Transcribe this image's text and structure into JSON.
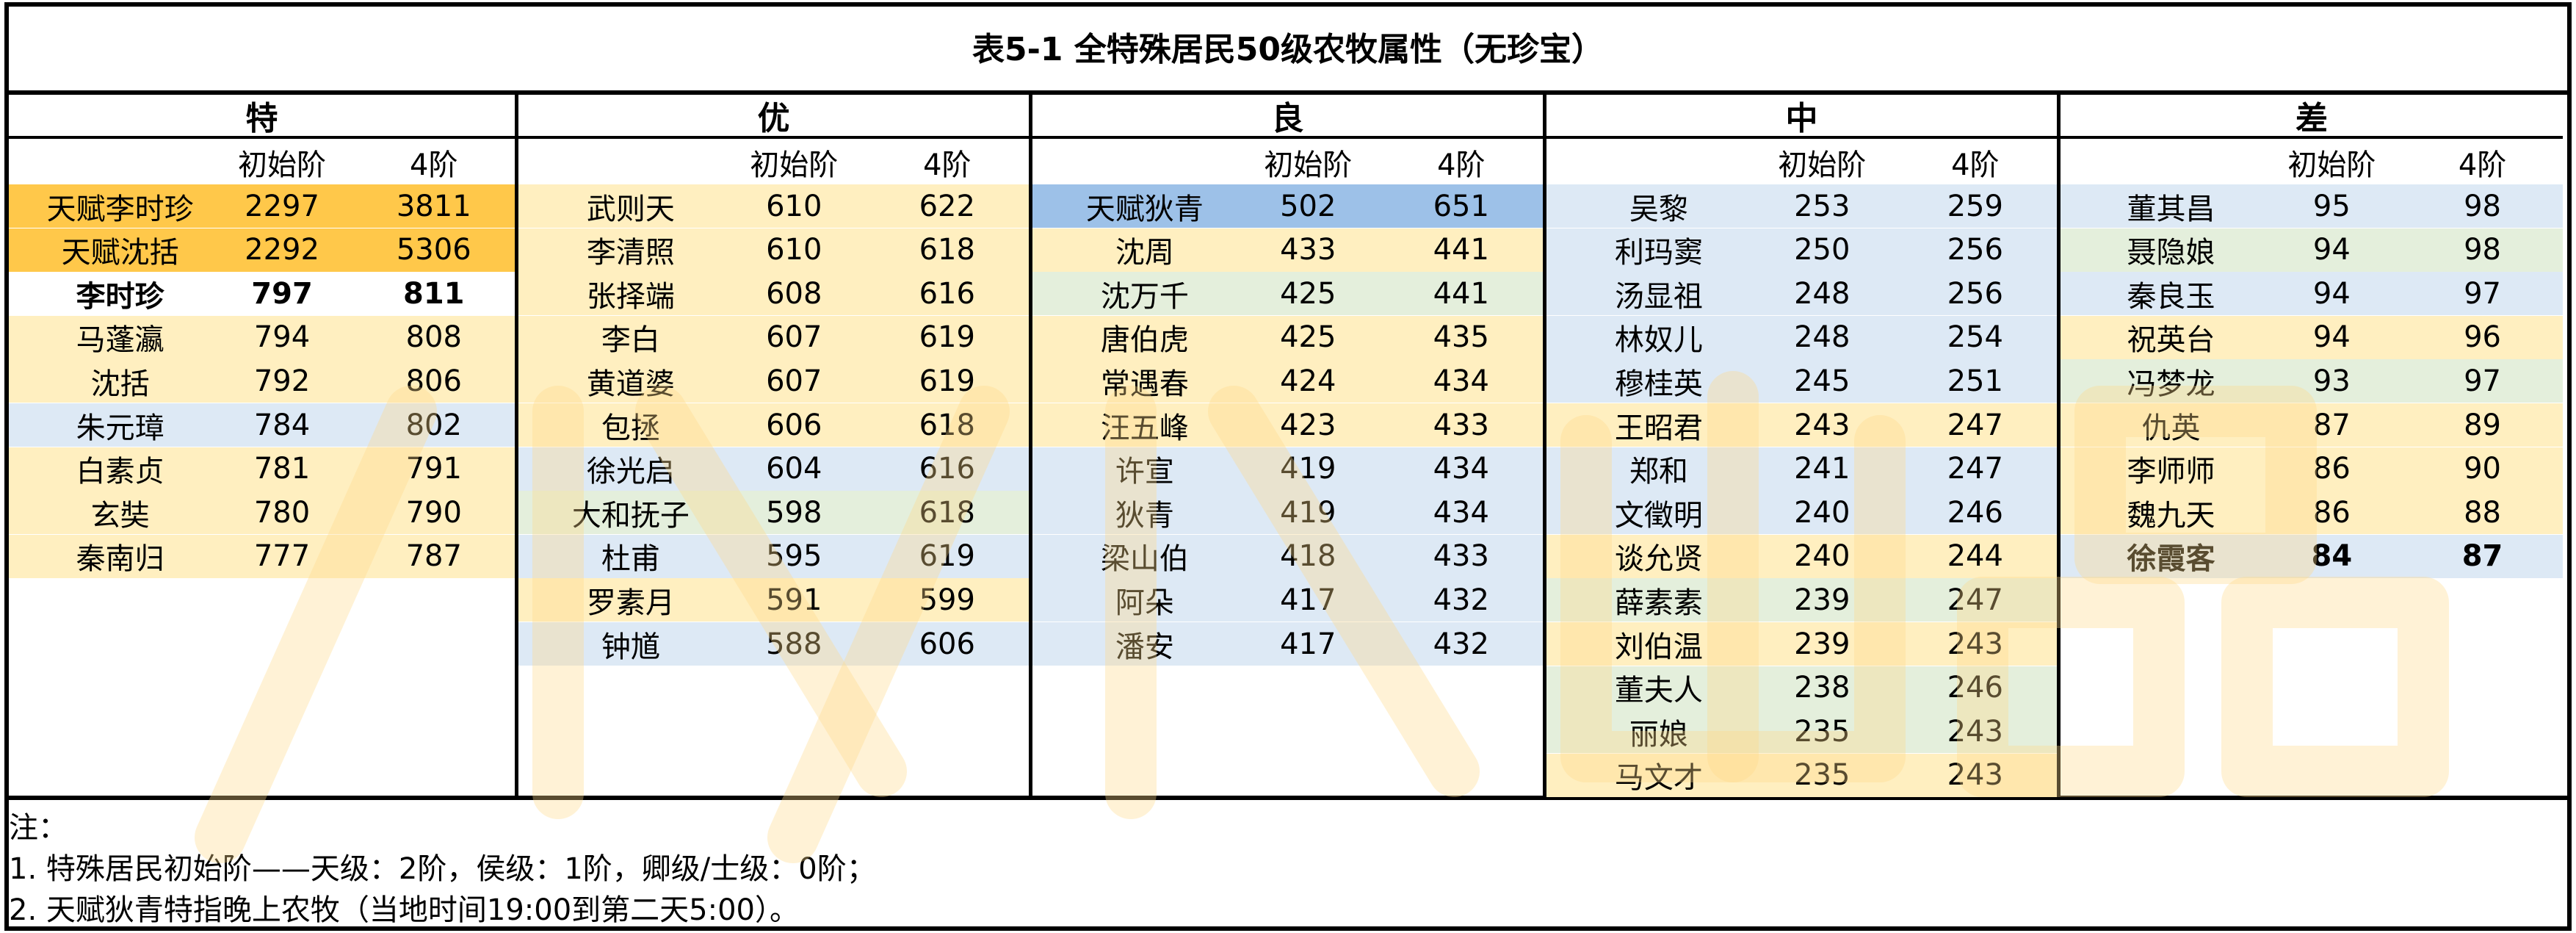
{
  "title": "表5-1 全特殊居民50级农牧属性（无珍宝）",
  "header": {
    "col_initial": "初始阶",
    "col_tier4": "4阶"
  },
  "colors": {
    "yellow": "#ffefc0",
    "blue": "#dde9f5",
    "green": "#e4efdc",
    "orange": "#ffc84a",
    "steel": "#9dc1e8"
  },
  "groups": [
    {
      "name": "特",
      "rows": [
        {
          "name": "天赋李时珍",
          "initial": "2297",
          "tier4": "3811",
          "bg": "#ffc84a"
        },
        {
          "name": "天赋沈括",
          "initial": "2292",
          "tier4": "5306",
          "bg": "#ffc84a"
        },
        {
          "name": "李时珍",
          "initial": "797",
          "tier4": "811",
          "bg": "#ffffff",
          "bold": true
        },
        {
          "name": "马蓬瀛",
          "initial": "794",
          "tier4": "808",
          "bg": "#ffefc0"
        },
        {
          "name": "沈括",
          "initial": "792",
          "tier4": "806",
          "bg": "#ffefc0"
        },
        {
          "name": "朱元璋",
          "initial": "784",
          "tier4": "802",
          "bg": "#dde9f5"
        },
        {
          "name": "白素贞",
          "initial": "781",
          "tier4": "791",
          "bg": "#ffefc0"
        },
        {
          "name": "玄奘",
          "initial": "780",
          "tier4": "790",
          "bg": "#ffefc0"
        },
        {
          "name": "秦南归",
          "initial": "777",
          "tier4": "787",
          "bg": "#ffefc0"
        }
      ]
    },
    {
      "name": "优",
      "rows": [
        {
          "name": "武则天",
          "initial": "610",
          "tier4": "622",
          "bg": "#ffefc0"
        },
        {
          "name": "李清照",
          "initial": "610",
          "tier4": "618",
          "bg": "#ffefc0"
        },
        {
          "name": "张择端",
          "initial": "608",
          "tier4": "616",
          "bg": "#ffefc0"
        },
        {
          "name": "李白",
          "initial": "607",
          "tier4": "619",
          "bg": "#ffefc0"
        },
        {
          "name": "黄道婆",
          "initial": "607",
          "tier4": "619",
          "bg": "#ffefc0"
        },
        {
          "name": "包拯",
          "initial": "606",
          "tier4": "618",
          "bg": "#ffefc0"
        },
        {
          "name": "徐光启",
          "initial": "604",
          "tier4": "616",
          "bg": "#dde9f5"
        },
        {
          "name": "大和抚子",
          "initial": "598",
          "tier4": "618",
          "bg": "#e4efdc"
        },
        {
          "name": "杜甫",
          "initial": "595",
          "tier4": "619",
          "bg": "#dde9f5"
        },
        {
          "name": "罗素月",
          "initial": "591",
          "tier4": "599",
          "bg": "#ffefc0"
        },
        {
          "name": "钟馗",
          "initial": "588",
          "tier4": "606",
          "bg": "#dde9f5"
        }
      ]
    },
    {
      "name": "良",
      "rows": [
        {
          "name": "天赋狄青",
          "initial": "502",
          "tier4": "651",
          "bg": "#9dc1e8"
        },
        {
          "name": "沈周",
          "initial": "433",
          "tier4": "441",
          "bg": "#ffefc0"
        },
        {
          "name": "沈万千",
          "initial": "425",
          "tier4": "441",
          "bg": "#e4efdc"
        },
        {
          "name": "唐伯虎",
          "initial": "425",
          "tier4": "435",
          "bg": "#ffefc0"
        },
        {
          "name": "常遇春",
          "initial": "424",
          "tier4": "434",
          "bg": "#ffefc0"
        },
        {
          "name": "汪五峰",
          "initial": "423",
          "tier4": "433",
          "bg": "#ffefc0"
        },
        {
          "name": "许宣",
          "initial": "419",
          "tier4": "434",
          "bg": "#dde9f5"
        },
        {
          "name": "狄青",
          "initial": "419",
          "tier4": "434",
          "bg": "#dde9f5"
        },
        {
          "name": "梁山伯",
          "initial": "418",
          "tier4": "433",
          "bg": "#dde9f5"
        },
        {
          "name": "阿朵",
          "initial": "417",
          "tier4": "432",
          "bg": "#dde9f5"
        },
        {
          "name": "潘安",
          "initial": "417",
          "tier4": "432",
          "bg": "#dde9f5"
        }
      ]
    },
    {
      "name": "中",
      "rows": [
        {
          "name": "吴黎",
          "initial": "253",
          "tier4": "259",
          "bg": "#dde9f5"
        },
        {
          "name": "利玛窦",
          "initial": "250",
          "tier4": "256",
          "bg": "#dde9f5"
        },
        {
          "name": "汤显祖",
          "initial": "248",
          "tier4": "256",
          "bg": "#dde9f5"
        },
        {
          "name": "林奴儿",
          "initial": "248",
          "tier4": "254",
          "bg": "#dde9f5"
        },
        {
          "name": "穆桂英",
          "initial": "245",
          "tier4": "251",
          "bg": "#dde9f5"
        },
        {
          "name": "王昭君",
          "initial": "243",
          "tier4": "247",
          "bg": "#ffefc0"
        },
        {
          "name": "郑和",
          "initial": "241",
          "tier4": "247",
          "bg": "#dde9f5"
        },
        {
          "name": "文徵明",
          "initial": "240",
          "tier4": "246",
          "bg": "#dde9f5"
        },
        {
          "name": "谈允贤",
          "initial": "240",
          "tier4": "244",
          "bg": "#ffefc0"
        },
        {
          "name": "薛素素",
          "initial": "239",
          "tier4": "247",
          "bg": "#e4efdc"
        },
        {
          "name": "刘伯温",
          "initial": "239",
          "tier4": "243",
          "bg": "#ffefc0"
        },
        {
          "name": "董夫人",
          "initial": "238",
          "tier4": "246",
          "bg": "#e4efdc"
        },
        {
          "name": "丽娘",
          "initial": "235",
          "tier4": "243",
          "bg": "#e4efdc"
        },
        {
          "name": "马文才",
          "initial": "235",
          "tier4": "243",
          "bg": "#ffefc0"
        }
      ]
    },
    {
      "name": "差",
      "rows": [
        {
          "name": "董其昌",
          "initial": "95",
          "tier4": "98",
          "bg": "#dde9f5"
        },
        {
          "name": "聂隐娘",
          "initial": "94",
          "tier4": "98",
          "bg": "#e4efdc"
        },
        {
          "name": "秦良玉",
          "initial": "94",
          "tier4": "97",
          "bg": "#dde9f5"
        },
        {
          "name": "祝英台",
          "initial": "94",
          "tier4": "96",
          "bg": "#ffefc0"
        },
        {
          "name": "冯梦龙",
          "initial": "93",
          "tier4": "97",
          "bg": "#e4efdc"
        },
        {
          "name": "仇英",
          "initial": "87",
          "tier4": "89",
          "bg": "#ffefc0"
        },
        {
          "name": "李师师",
          "initial": "86",
          "tier4": "90",
          "bg": "#ffefc0"
        },
        {
          "name": "魏九天",
          "initial": "86",
          "tier4": "88",
          "bg": "#ffefc0"
        },
        {
          "name": "徐霞客",
          "initial": "84",
          "tier4": "87",
          "bg": "#dde9f5",
          "bold": true
        }
      ]
    }
  ],
  "notes": [
    "注：",
    "1. 特殊居民初始阶——天级：2阶，侯级：1阶，卿级/士级：0阶；",
    "2. 天赋狄青特指晚上农牧（当地时间19:00到第二天5:00）。"
  ]
}
